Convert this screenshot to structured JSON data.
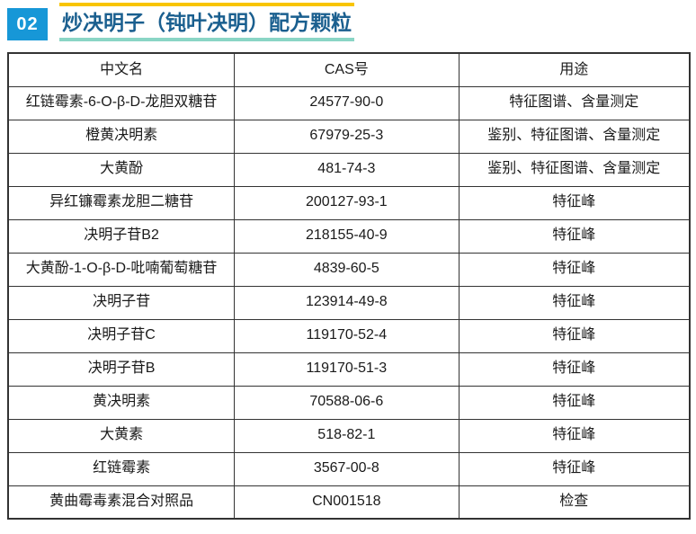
{
  "header": {
    "badge_number": "02",
    "title": "炒决明子（钝叶决明）配方颗粒"
  },
  "colors": {
    "badge_blue": "#1797D7",
    "title_blue": "#1A5F8F",
    "accent_yellow": "#F8C500",
    "accent_teal": "#8AD5C5",
    "table_border": "#333333"
  },
  "table": {
    "columns": [
      "中文名",
      "CAS号",
      "用途"
    ],
    "rows": [
      {
        "name": "红链霉素-6-O-β-D-龙胆双糖苷",
        "cas": "24577-90-0",
        "usage": "特征图谱、含量测定"
      },
      {
        "name": "橙黄决明素",
        "cas": "67979-25-3",
        "usage": "鉴别、特征图谱、含量测定"
      },
      {
        "name": "大黄酚",
        "cas": "481-74-3",
        "usage": "鉴别、特征图谱、含量测定"
      },
      {
        "name": "异红镰霉素龙胆二糖苷",
        "cas": "200127-93-1",
        "usage": "特征峰"
      },
      {
        "name": "决明子苷B2",
        "cas": "218155-40-9",
        "usage": "特征峰"
      },
      {
        "name": "大黄酚-1-O-β-D-吡喃葡萄糖苷",
        "cas": "4839-60-5",
        "usage": "特征峰"
      },
      {
        "name": "决明子苷",
        "cas": "123914-49-8",
        "usage": "特征峰"
      },
      {
        "name": "决明子苷C",
        "cas": "119170-52-4",
        "usage": "特征峰"
      },
      {
        "name": "决明子苷B",
        "cas": "119170-51-3",
        "usage": "特征峰"
      },
      {
        "name": "黄决明素",
        "cas": "70588-06-6",
        "usage": "特征峰"
      },
      {
        "name": "大黄素",
        "cas": "518-82-1",
        "usage": "特征峰"
      },
      {
        "name": "红链霉素",
        "cas": "3567-00-8",
        "usage": "特征峰"
      },
      {
        "name": "黄曲霉毒素混合对照品",
        "cas": "CN001518",
        "usage": "检查"
      }
    ]
  }
}
